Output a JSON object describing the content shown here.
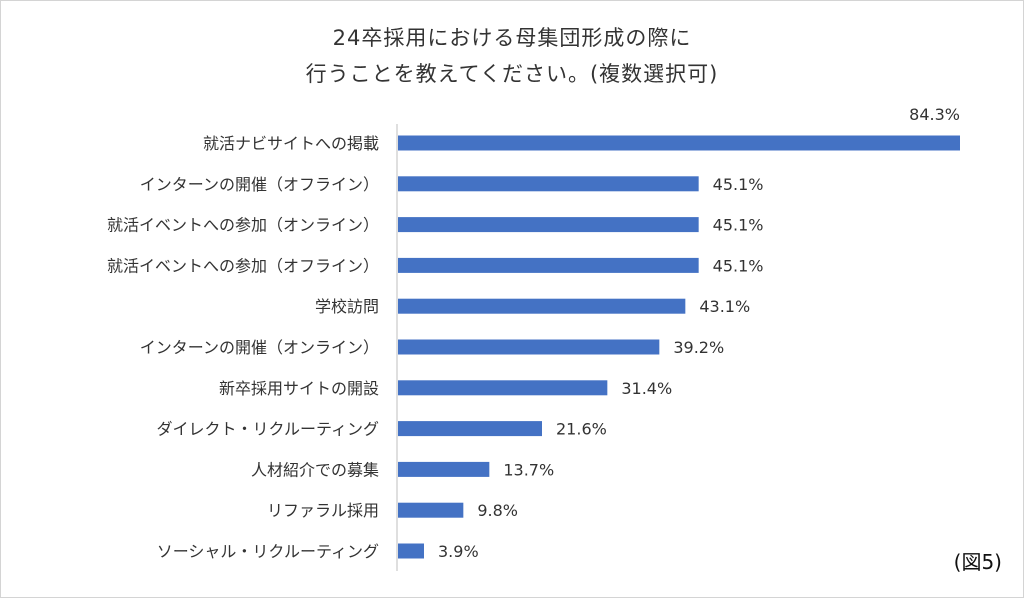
{
  "title_line1": "24卒採用における母集団形成の際に",
  "title_line2": "行うことを教えてください。(複数選択可)",
  "figure_label": "(図5)",
  "chart_data": {
    "type": "bar",
    "orientation": "horizontal",
    "title": "24卒採用における母集団形成の際に 行うことを教えてください。(複数選択可)",
    "categories": [
      "就活ナビサイトへの掲載",
      "インターンの開催（オフライン）",
      "就活イベントへの参加（オンライン）",
      "就活イベントへの参加（オフライン）",
      "学校訪問",
      "インターンの開催（オンライン）",
      "新卒採用サイトの開設",
      "ダイレクト・リクルーティング",
      "人材紹介での募集",
      "リファラル採用",
      "ソーシャル・リクルーティング"
    ],
    "values": [
      84.3,
      45.1,
      45.1,
      45.1,
      43.1,
      39.2,
      31.4,
      21.6,
      13.7,
      9.8,
      3.9
    ],
    "value_labels": [
      "84.3%",
      "45.1%",
      "45.1%",
      "45.1%",
      "43.1%",
      "39.2%",
      "31.4%",
      "21.6%",
      "13.7%",
      "9.8%",
      "3.9%"
    ],
    "xlim": [
      0,
      84.3
    ],
    "grid": false,
    "bar_color": "#4472C4"
  }
}
